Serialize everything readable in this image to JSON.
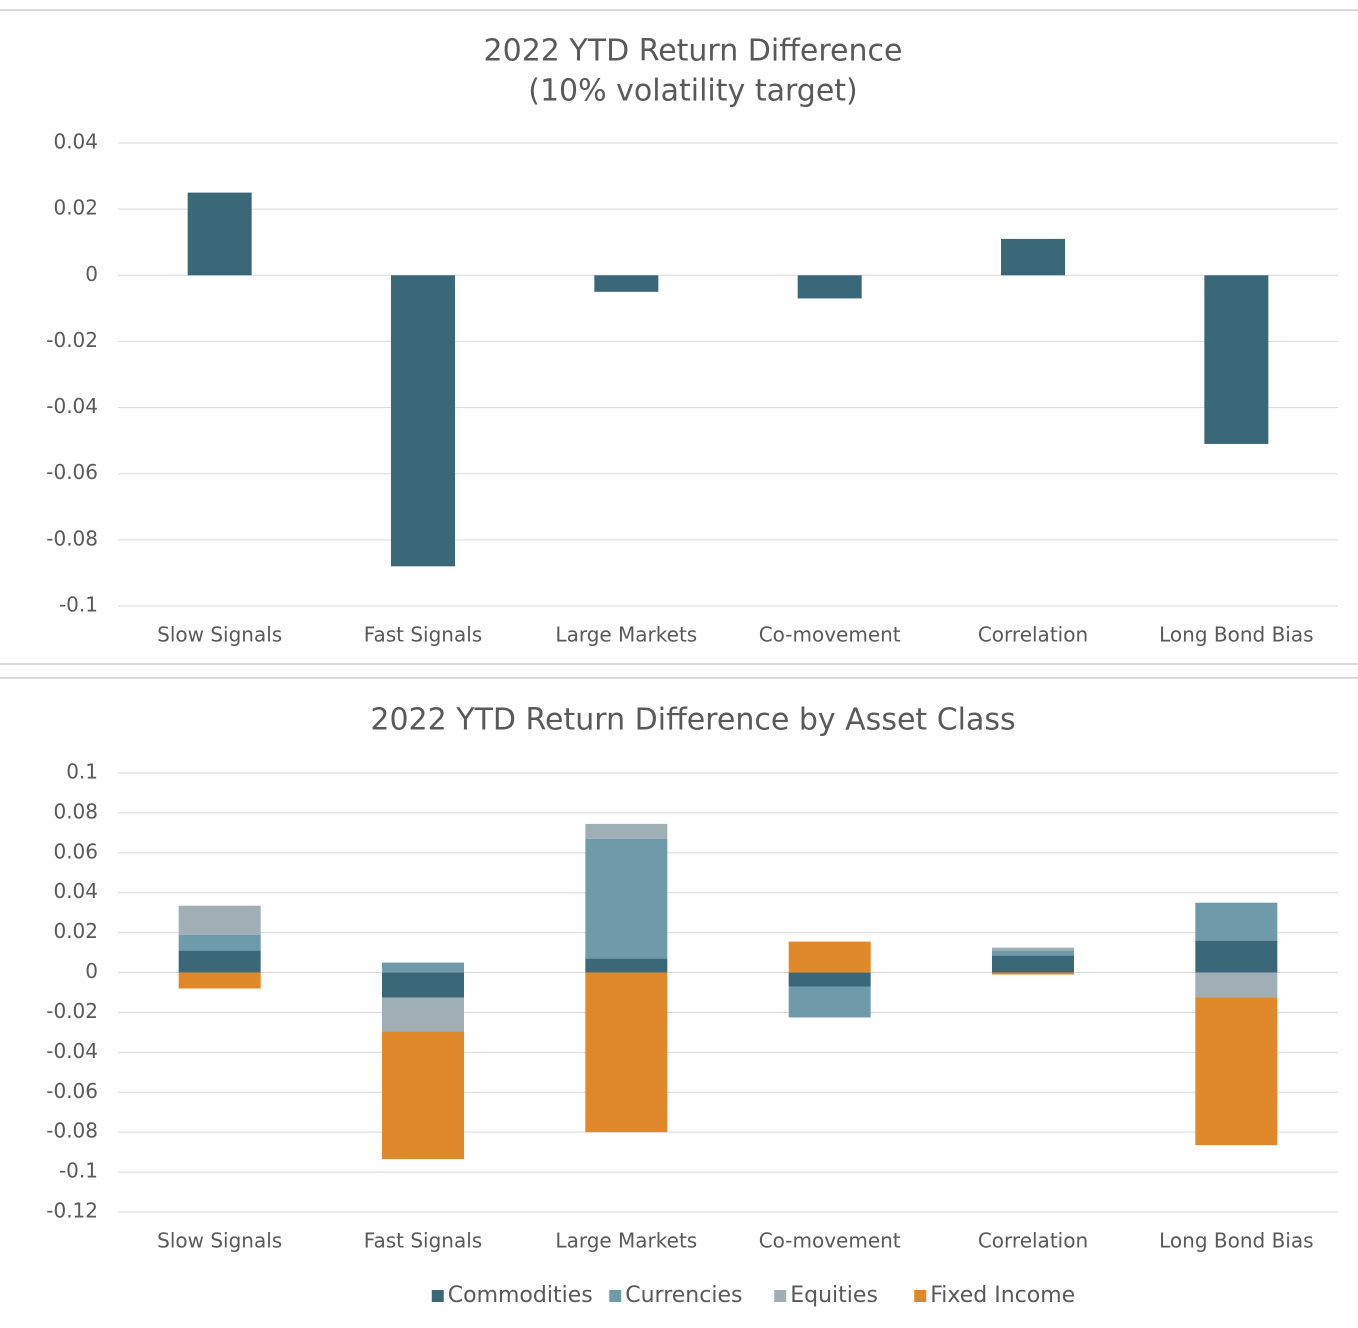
{
  "chart_data": [
    {
      "type": "bar",
      "title": "2022 YTD Return Difference",
      "subtitle": "(10% volatility target)",
      "categories": [
        "Slow Signals",
        "Fast Signals",
        "Large Markets",
        "Co-movement",
        "Correlation",
        "Long Bond Bias"
      ],
      "values": [
        0.025,
        -0.088,
        -0.005,
        -0.007,
        0.011,
        -0.051
      ],
      "color": "#3b6878",
      "ylim": [
        -0.1,
        0.04
      ],
      "yticks": [
        -0.1,
        -0.08,
        -0.06,
        -0.04,
        -0.02,
        0,
        0.02,
        0.04
      ],
      "grid": true
    },
    {
      "type": "stacked_bar",
      "title": "2022 YTD Return Difference by Asset Class",
      "categories": [
        "Slow Signals",
        "Fast Signals",
        "Large Markets",
        "Co-movement",
        "Correlation",
        "Long Bond Bias"
      ],
      "series": [
        {
          "name": "Commodities",
          "color": "#3b6878",
          "values": [
            0.011,
            -0.0125,
            0.007,
            -0.007,
            0.0085,
            0.016
          ]
        },
        {
          "name": "Currencies",
          "color": "#6f9aaa",
          "values": [
            0.008,
            0.005,
            0.06,
            -0.0155,
            0.0025,
            0.019
          ]
        },
        {
          "name": "Equities",
          "color": "#a0afb5",
          "values": [
            0.0145,
            -0.017,
            0.0075,
            0,
            0.0015,
            -0.0125
          ]
        },
        {
          "name": "Fixed Income",
          "color": "#e0892b",
          "values": [
            -0.008,
            -0.064,
            -0.08,
            0.0155,
            -0.001,
            -0.074
          ]
        }
      ],
      "ylim": [
        -0.12,
        0.1
      ],
      "yticks": [
        -0.12,
        -0.1,
        -0.08,
        -0.06,
        -0.04,
        -0.02,
        0,
        0.02,
        0.04,
        0.06,
        0.08,
        0.1
      ],
      "grid": true,
      "legend": "bottom"
    }
  ]
}
